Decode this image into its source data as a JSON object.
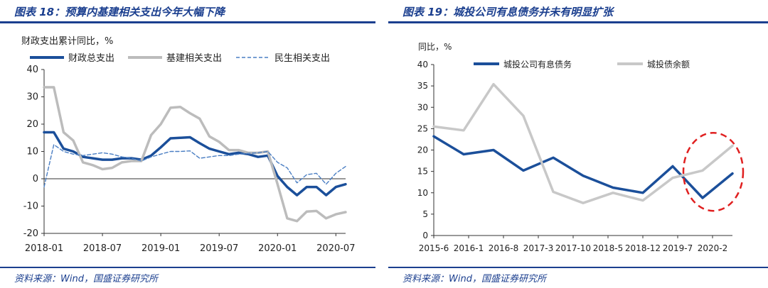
{
  "figures": [
    {
      "title": "图表 18：预算内基建相关支出今年大幅下降",
      "source": "资料来源：Wind，国盛证券研究所"
    },
    {
      "title": "图表 19：城投公司有息债务并未有明显扩张",
      "source": "资料来源：Wind，国盛证券研究所"
    }
  ],
  "chart_data": [
    {
      "type": "line",
      "ylabel": "财政支出累计同比，%",
      "ylim": [
        -20,
        40
      ],
      "yticks": [
        "40",
        "30",
        "20",
        "10",
        "0",
        "-10",
        "-20"
      ],
      "xtick_labels": [
        "2018-01",
        "2018-07",
        "2019-01",
        "2019-07",
        "2020-01",
        "2020-07"
      ],
      "x_range": [
        "2018-01",
        "2020-08"
      ],
      "legend_position": "top",
      "series": [
        {
          "name": "财政总支出",
          "style": "solid-thick",
          "color": "#1b4f9a",
          "x": [
            "2018-01",
            "2018-02",
            "2018-03",
            "2018-04",
            "2018-05",
            "2018-06",
            "2018-07",
            "2018-08",
            "2018-09",
            "2018-10",
            "2018-11",
            "2018-12",
            "2019-01",
            "2019-02",
            "2019-03",
            "2019-04",
            "2019-05",
            "2019-06",
            "2019-07",
            "2019-08",
            "2019-09",
            "2019-10",
            "2019-11",
            "2019-12",
            "2020-01",
            "2020-02",
            "2020-03",
            "2020-04",
            "2020-05",
            "2020-06",
            "2020-07",
            "2020-08"
          ],
          "values": [
            17,
            17,
            11,
            10,
            8,
            7.5,
            7,
            7,
            7.5,
            7.5,
            7,
            8.5,
            11.5,
            14.8,
            15,
            15.2,
            13,
            11,
            10,
            9,
            9.5,
            9,
            8,
            8.5,
            1,
            -3,
            -6,
            -3,
            -3,
            -6,
            -3,
            -2
          ]
        },
        {
          "name": "基建相关支出",
          "style": "solid-gray",
          "color": "#bcbcbc",
          "x": [
            "2018-01",
            "2018-02",
            "2018-03",
            "2018-04",
            "2018-05",
            "2018-06",
            "2018-07",
            "2018-08",
            "2018-09",
            "2018-10",
            "2018-11",
            "2018-12",
            "2019-01",
            "2019-02",
            "2019-03",
            "2019-04",
            "2019-05",
            "2019-06",
            "2019-07",
            "2019-08",
            "2019-09",
            "2019-10",
            "2019-11",
            "2019-12",
            "2020-01",
            "2020-02",
            "2020-03",
            "2020-04",
            "2020-05",
            "2020-06",
            "2020-07",
            "2020-08"
          ],
          "values": [
            33.5,
            33.5,
            17,
            14,
            6,
            5,
            3.5,
            4,
            6,
            6.5,
            6.5,
            16,
            20,
            26,
            26.3,
            24,
            22,
            15.5,
            13.5,
            10.5,
            10.5,
            9.5,
            9.5,
            10,
            -2,
            -14.5,
            -15.5,
            -12,
            -11.8,
            -14.5,
            -13,
            -12.2
          ]
        },
        {
          "name": "民生相关支出",
          "style": "dashed",
          "color": "#4a7ec3",
          "x": [
            "2018-01",
            "2018-02",
            "2018-03",
            "2018-04",
            "2018-05",
            "2018-06",
            "2018-07",
            "2018-08",
            "2018-09",
            "2018-10",
            "2018-11",
            "2018-12",
            "2019-01",
            "2019-02",
            "2019-03",
            "2019-04",
            "2019-05",
            "2019-06",
            "2019-07",
            "2019-08",
            "2019-09",
            "2019-10",
            "2019-11",
            "2019-12",
            "2020-01",
            "2020-02",
            "2020-03",
            "2020-04",
            "2020-05",
            "2020-06",
            "2020-07",
            "2020-08"
          ],
          "values": [
            -3,
            12.5,
            10,
            9,
            8.5,
            9,
            9.5,
            9,
            8,
            7.5,
            6.5,
            8,
            9,
            10,
            10,
            10.2,
            7.5,
            8,
            8.5,
            8.5,
            9,
            9.3,
            9.5,
            10,
            6,
            4,
            -1.5,
            1.5,
            2,
            -2,
            2,
            4.5
          ]
        }
      ]
    },
    {
      "type": "line",
      "ylabel": "同比，%",
      "ylim": [
        0,
        40
      ],
      "yticks": [
        "40",
        "35",
        "30",
        "25",
        "20",
        "15",
        "10",
        "5",
        "0"
      ],
      "xtick_labels": [
        "2015-6",
        "2016-1",
        "2016-8",
        "2017-3",
        "2017-10",
        "2018-5",
        "2018-12",
        "2019-7",
        "2020-2"
      ],
      "x_range": [
        "2015-6",
        "2020-6"
      ],
      "legend_position": "top",
      "annotation": "red dashed ellipse highlighting 2019-12 to 2020-6",
      "series": [
        {
          "name": "城投公司有息债务",
          "style": "solid-thick",
          "color": "#1b4f9a",
          "x": [
            "2015-6",
            "2015-12",
            "2016-6",
            "2016-12",
            "2017-6",
            "2017-12",
            "2018-6",
            "2018-12",
            "2019-6",
            "2019-12",
            "2020-6"
          ],
          "values": [
            23.2,
            19,
            20,
            15.2,
            18.2,
            14,
            11.2,
            10,
            16.2,
            8.8,
            14.5
          ]
        },
        {
          "name": "城投债余额",
          "style": "solid-gray",
          "color": "#c8c8c8",
          "x": [
            "2015-6",
            "2015-12",
            "2016-6",
            "2016-12",
            "2017-6",
            "2017-12",
            "2018-6",
            "2018-12",
            "2019-6",
            "2019-12",
            "2020-6"
          ],
          "values": [
            25.5,
            24.6,
            35.4,
            28,
            10.2,
            7.6,
            10,
            8.2,
            13.5,
            15.2,
            21
          ]
        }
      ]
    }
  ]
}
